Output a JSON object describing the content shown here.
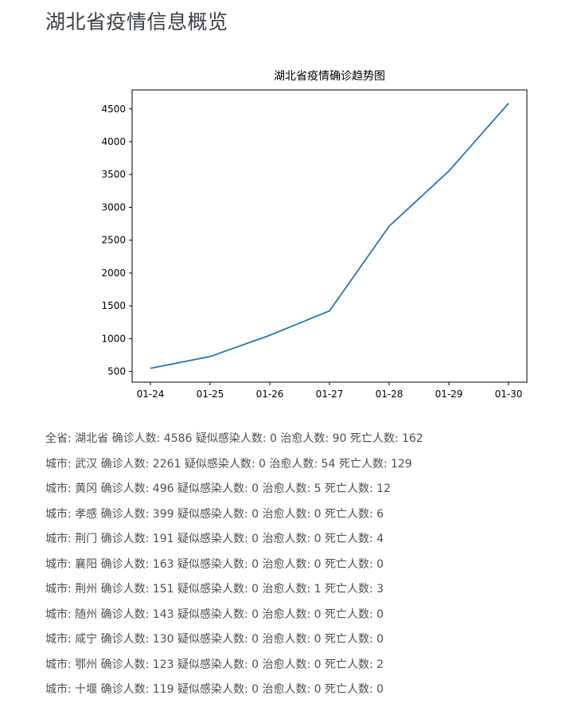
{
  "page": {
    "title": "湖北省疫情信息概览"
  },
  "chart_data": {
    "type": "line",
    "title": "湖北省疫情确诊趋势图",
    "xlabel": "",
    "ylabel": "",
    "categories": [
      "01-24",
      "01-25",
      "01-26",
      "01-27",
      "01-28",
      "01-29",
      "01-30"
    ],
    "values": [
      549,
      729,
      1052,
      1423,
      2714,
      3554,
      4586
    ],
    "y_ticks": [
      500,
      1000,
      1500,
      2000,
      2500,
      3000,
      3500,
      4000,
      4500
    ],
    "ylim": [
      338,
      4788
    ],
    "grid": false,
    "line_color": "#1f77b4"
  },
  "summary": {
    "lines": [
      "全省: 湖北省 确诊人数: 4586 疑似感染人数: 0 治愈人数: 90 死亡人数: 162",
      "城市: 武汉 确诊人数: 2261 疑似感染人数: 0 治愈人数: 54 死亡人数: 129",
      "城市: 黄冈 确诊人数: 496 疑似感染人数: 0 治愈人数: 5 死亡人数: 12",
      "城市: 孝感 确诊人数: 399 疑似感染人数: 0 治愈人数: 0 死亡人数: 6",
      "城市: 荆门 确诊人数: 191 疑似感染人数: 0 治愈人数: 0 死亡人数: 4",
      "城市: 襄阳 确诊人数: 163 疑似感染人数: 0 治愈人数: 0 死亡人数: 0",
      "城市: 荆州 确诊人数: 151 疑似感染人数: 0 治愈人数: 1 死亡人数: 3",
      "城市: 随州 确诊人数: 143 疑似感染人数: 0 治愈人数: 0 死亡人数: 0",
      "城市: 咸宁 确诊人数: 130 疑似感染人数: 0 治愈人数: 0 死亡人数: 0",
      "城市: 鄂州 确诊人数: 123 疑似感染人数: 0 治愈人数: 0 死亡人数: 2",
      "城市: 十堰 确诊人数: 119 疑似感染人数: 0 治愈人数: 0 死亡人数: 0"
    ]
  }
}
